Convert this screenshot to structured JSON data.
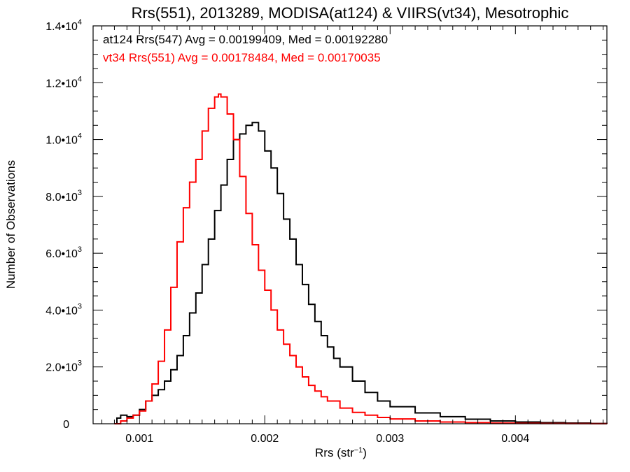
{
  "chart_data": {
    "type": "line",
    "title": "Rrs(551), 2013289, MODISA(at124) & VIIRS(vt34), Mesotrophic",
    "xlabel": "Rrs (str",
    "xlabel_exponent": "−1",
    "xlabel_suffix": ")",
    "ylabel": "Number of Observations",
    "xlim": [
      0.00063,
      0.00473
    ],
    "ylim": [
      0,
      14000
    ],
    "grid": false,
    "x_ticks": [
      {
        "value": 0.001,
        "label": "0.001"
      },
      {
        "value": 0.002,
        "label": "0.002"
      },
      {
        "value": 0.003,
        "label": "0.003"
      },
      {
        "value": 0.004,
        "label": "0.004"
      }
    ],
    "y_ticks": [
      {
        "value": 0,
        "mantissa": "0",
        "exponent": ""
      },
      {
        "value": 2000,
        "mantissa": "2.0•10",
        "exponent": "3"
      },
      {
        "value": 4000,
        "mantissa": "4.0•10",
        "exponent": "3"
      },
      {
        "value": 6000,
        "mantissa": "6.0•10",
        "exponent": "3"
      },
      {
        "value": 8000,
        "mantissa": "8.0•10",
        "exponent": "3"
      },
      {
        "value": 10000,
        "mantissa": "1.0•10",
        "exponent": "4"
      },
      {
        "value": 12000,
        "mantissa": "1.2•10",
        "exponent": "4"
      },
      {
        "value": 14000,
        "mantissa": "1.4•10",
        "exponent": "4"
      }
    ],
    "annotations": [
      {
        "text": "at124 Rrs(547) Avg = 0.00199409, Med = 0.00192280",
        "color": "#000000"
      },
      {
        "text": "vt34 Rrs(551) Avg = 0.00178484, Med = 0.00170035",
        "color": "#ff0000"
      }
    ],
    "series": [
      {
        "color": "#000000",
        "x": [
          0.0008,
          0.00082,
          0.00085,
          0.0009,
          0.00095,
          0.001,
          0.00105,
          0.0011,
          0.00115,
          0.0012,
          0.00125,
          0.0013,
          0.00135,
          0.0014,
          0.00145,
          0.0015,
          0.00155,
          0.0016,
          0.00165,
          0.0017,
          0.00175,
          0.0018,
          0.00185,
          0.0019,
          0.00195,
          0.002,
          0.00205,
          0.0021,
          0.00215,
          0.0022,
          0.00225,
          0.0023,
          0.00235,
          0.0024,
          0.00245,
          0.0025,
          0.00255,
          0.0026,
          0.0027,
          0.0028,
          0.0029,
          0.003,
          0.0032,
          0.0034,
          0.0036,
          0.0038,
          0.004,
          0.0042,
          0.0044,
          0.0046,
          0.00473
        ],
        "y": [
          0,
          200,
          300,
          250,
          300,
          500,
          800,
          1000,
          1200,
          1500,
          1900,
          2400,
          3100,
          3900,
          4600,
          5600,
          6500,
          7500,
          8400,
          9300,
          10000,
          10200,
          10500,
          10600,
          10300,
          9600,
          9000,
          8100,
          7200,
          6500,
          5600,
          4900,
          4200,
          3600,
          3100,
          2700,
          2300,
          2000,
          1500,
          1100,
          800,
          600,
          380,
          250,
          160,
          100,
          60,
          40,
          25,
          10,
          0
        ]
      },
      {
        "color": "#ff0000",
        "x": [
          0.0008,
          0.00085,
          0.0009,
          0.00095,
          0.001,
          0.00105,
          0.0011,
          0.00115,
          0.0012,
          0.00125,
          0.0013,
          0.00135,
          0.0014,
          0.00145,
          0.0015,
          0.00155,
          0.0016,
          0.00163,
          0.00165,
          0.0017,
          0.00175,
          0.0018,
          0.00185,
          0.0019,
          0.00195,
          0.002,
          0.00205,
          0.0021,
          0.00215,
          0.0022,
          0.00225,
          0.0023,
          0.00235,
          0.0024,
          0.00245,
          0.0025,
          0.0026,
          0.0027,
          0.0028,
          0.0029,
          0.003,
          0.0032,
          0.0034,
          0.0036,
          0.0038,
          0.004,
          0.0042,
          0.0044,
          0.0046,
          0.00473
        ],
        "y": [
          0,
          100,
          200,
          300,
          450,
          800,
          1400,
          2200,
          3300,
          4800,
          6400,
          7600,
          8500,
          9300,
          10300,
          11100,
          11500,
          11600,
          11500,
          10900,
          10000,
          8700,
          7400,
          6300,
          5400,
          4700,
          4000,
          3300,
          2800,
          2400,
          2000,
          1650,
          1350,
          1150,
          950,
          800,
          550,
          400,
          300,
          220,
          170,
          100,
          60,
          40,
          25,
          15,
          10,
          5,
          2,
          0
        ]
      }
    ]
  }
}
